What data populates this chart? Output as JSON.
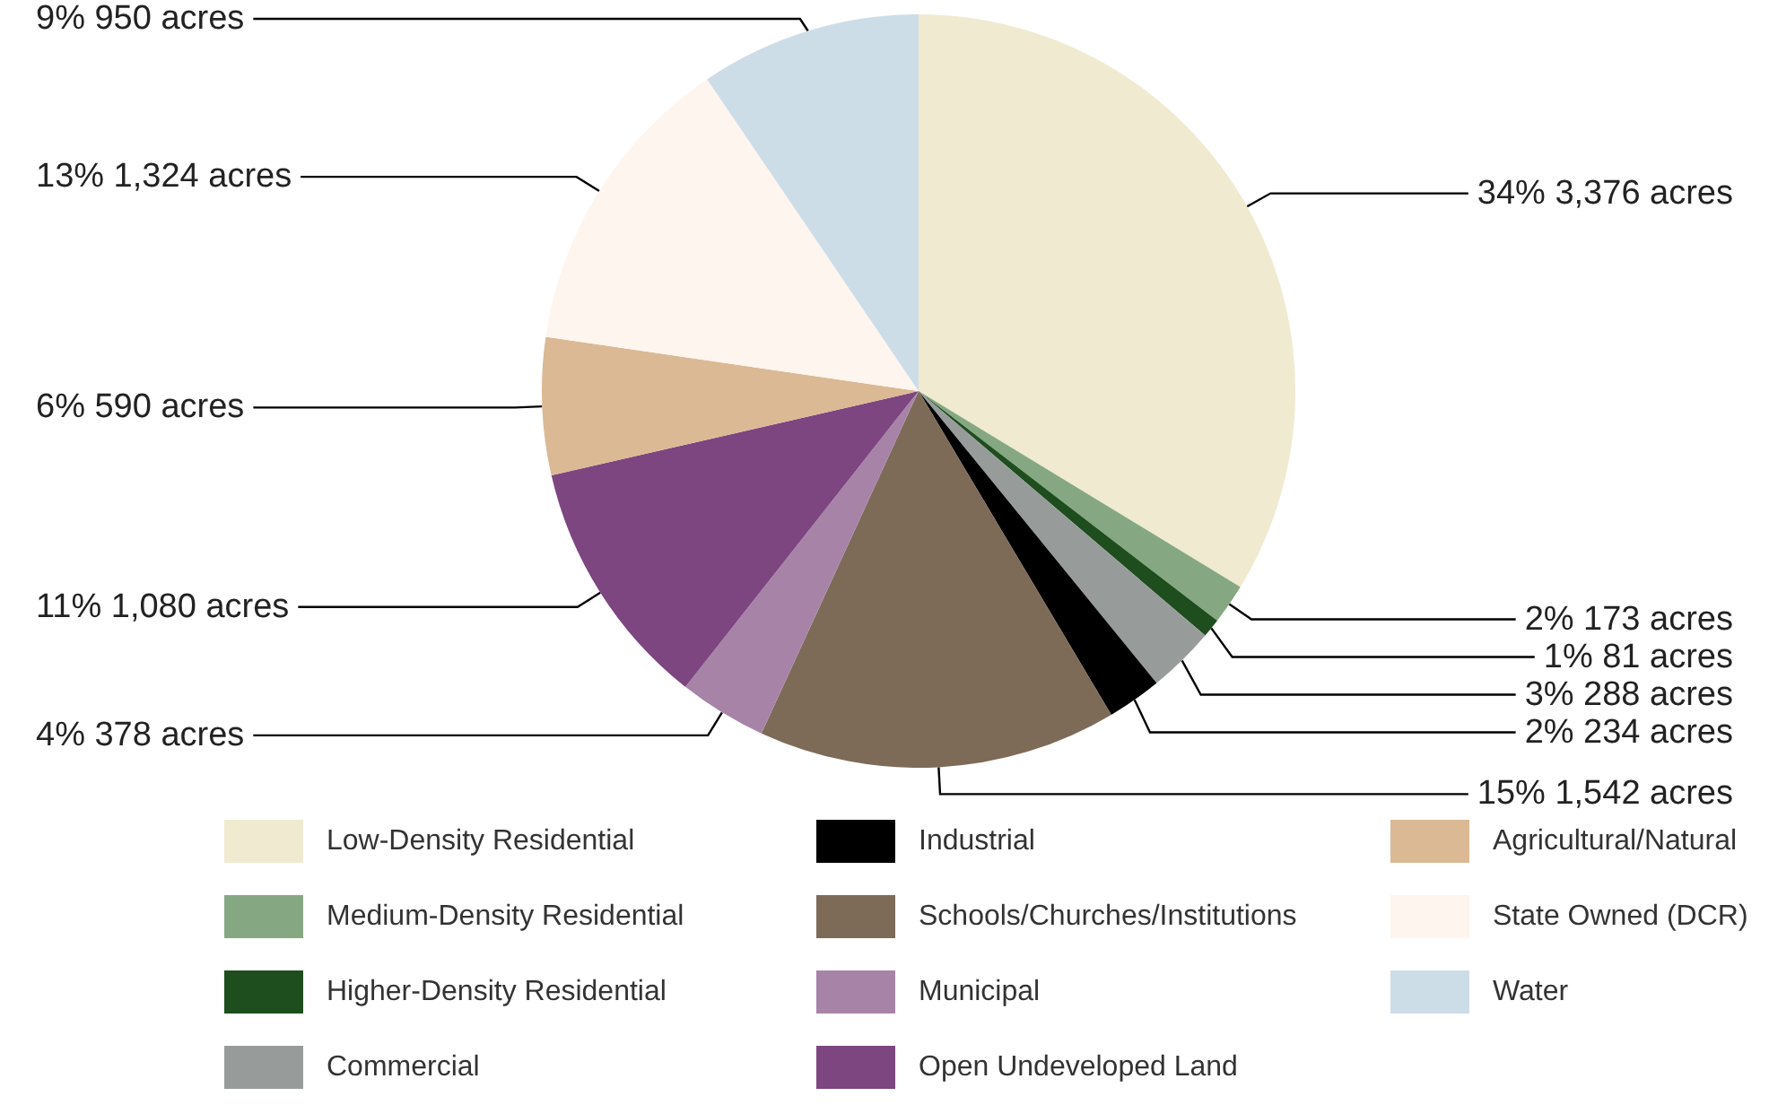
{
  "chart_data": {
    "type": "pie",
    "categories": [
      "Low-Density Residential",
      "Medium-Density Residential",
      "Higher-Density Residential",
      "Commercial",
      "Industrial",
      "Schools/Churches/Institutions",
      "Municipal",
      "Open Undeveloped Land",
      "Agricultural/Natural",
      "State Owned (DCR)",
      "Water"
    ],
    "values": [
      3376,
      173,
      81,
      288,
      234,
      1542,
      378,
      1080,
      590,
      1324,
      950
    ],
    "value_labels": [
      "34% 3,376 acres",
      "2% 173 acres",
      "1% 81 acres",
      "3% 288 acres",
      "2% 234 acres",
      "15% 1,542 acres",
      "4% 378 acres",
      "11% 1,080 acres",
      "6% 590 acres",
      "13% 1,324 acres",
      "9% 950 acres"
    ],
    "colors": [
      "#f0ead0",
      "#85a882",
      "#1e4d1e",
      "#979c9b",
      "#000000",
      "#7d6b58",
      "#a783a8",
      "#7d4680",
      "#dbb995",
      "#fdf5ee",
      "#cddde8"
    ],
    "legend": "bottom"
  }
}
